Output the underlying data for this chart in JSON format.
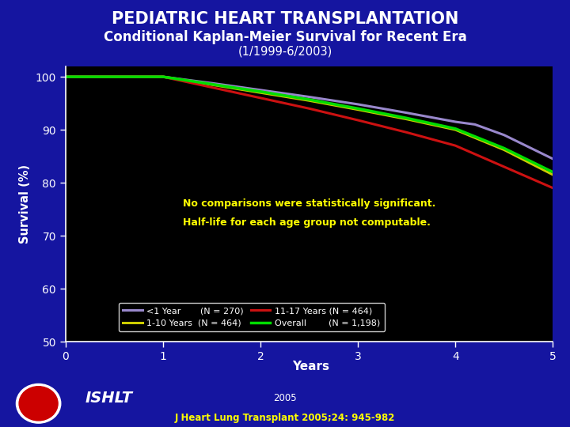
{
  "title1": "PEDIATRIC HEART TRANSPLANTATION",
  "title2": "Conditional Kaplan-Meier Survival for Recent Era",
  "title3": "(1/1999-6/2003)",
  "ylabel": "Survival (%)",
  "xlabel": "Years",
  "bg_outer": "#1515a0",
  "bg_inner": "#000000",
  "ylim": [
    50,
    102
  ],
  "xlim": [
    0,
    5
  ],
  "yticks": [
    50,
    60,
    70,
    80,
    90,
    100
  ],
  "xticks": [
    0,
    1,
    2,
    3,
    4,
    5
  ],
  "annotation_line1": "No comparisons were statistically significant.",
  "annotation_line2": "Half-life for each age group not computable.",
  "annotation_color": "#ffff00",
  "citation": "J Heart Lung Transplant 2005;24: 945-982",
  "citation_color": "#ffff00",
  "year_text": "2005",
  "ishlt_text": "ISHLT",
  "curves": {
    "less1": {
      "label": "<1 Year      (N = 270)",
      "color": "#9988cc",
      "x": [
        0,
        1,
        1.5,
        2,
        2.5,
        3,
        3.5,
        4,
        4.2,
        4.5,
        5
      ],
      "y": [
        100,
        100,
        98.8,
        97.5,
        96.2,
        94.8,
        93.2,
        91.5,
        91.0,
        89.0,
        84.5
      ]
    },
    "age1_10": {
      "label": "1-10 Years  (N = 464)",
      "color": "#cccc00",
      "x": [
        0,
        1,
        1.5,
        2,
        2.5,
        3,
        3.5,
        4,
        4.5,
        5
      ],
      "y": [
        100,
        100,
        98.5,
        97.0,
        95.5,
        93.8,
        92.0,
        90.0,
        86.2,
        81.5
      ]
    },
    "age11_17": {
      "label": "11-17 Years (N = 464)",
      "color": "#cc1111",
      "x": [
        0,
        1,
        1.5,
        2,
        2.5,
        3,
        3.5,
        4,
        4.5,
        5
      ],
      "y": [
        100,
        100,
        98.0,
        96.0,
        94.0,
        91.8,
        89.5,
        87.0,
        83.0,
        79.0
      ]
    },
    "overall": {
      "label": "Overall       (N = 1,198)",
      "color": "#00dd00",
      "x": [
        0,
        1,
        1.5,
        2,
        2.5,
        3,
        3.5,
        4,
        4.5,
        5
      ],
      "y": [
        100,
        100,
        98.6,
        97.2,
        95.7,
        94.0,
        92.2,
        90.2,
        86.5,
        82.0
      ]
    }
  }
}
